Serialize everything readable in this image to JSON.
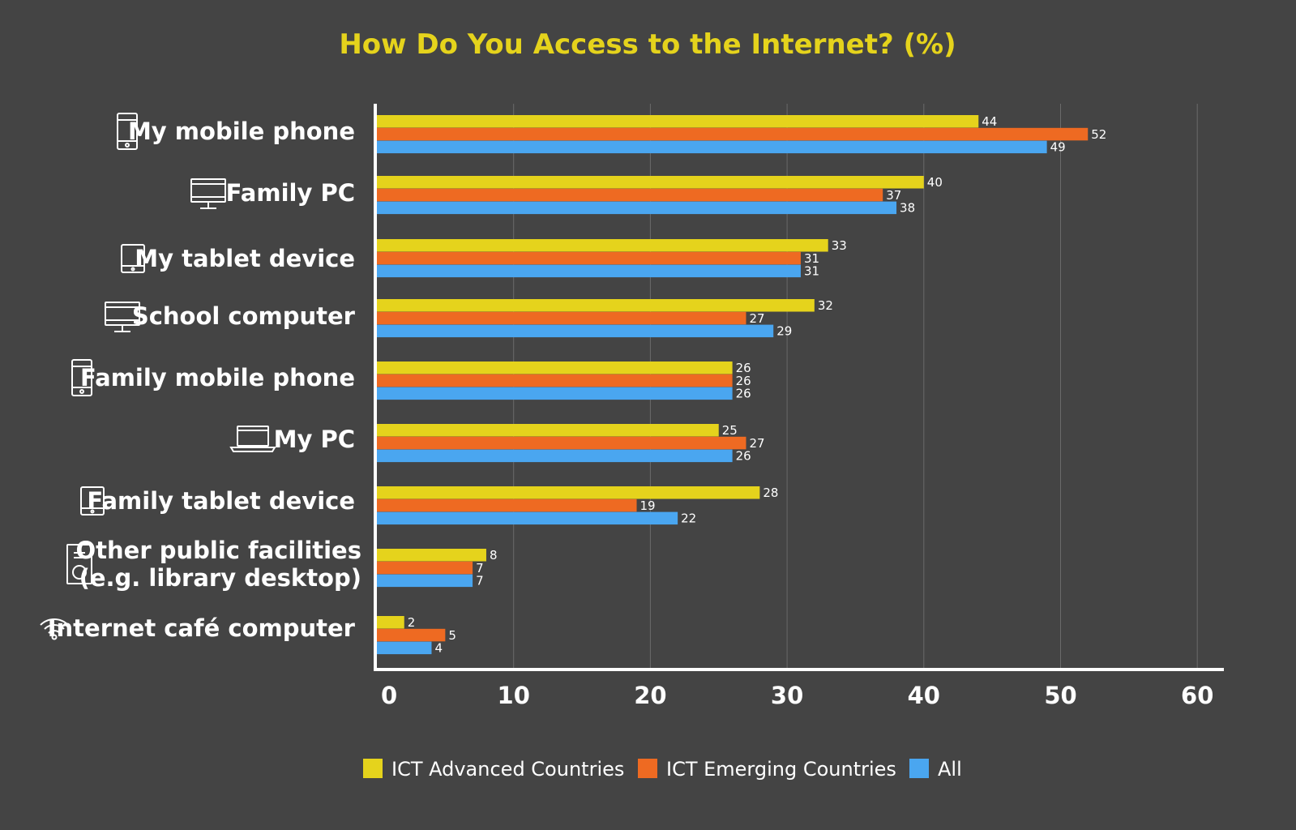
{
  "chart_data": {
    "type": "bar",
    "orientation": "horizontal",
    "title": "How Do You Access to the Internet? (%)",
    "categories": [
      {
        "label": "My mobile phone",
        "icon": "mobile-phone-icon"
      },
      {
        "label": "Family PC",
        "icon": "desktop-monitor-icon"
      },
      {
        "label": "My tablet device",
        "icon": "tablet-icon"
      },
      {
        "label": "School computer",
        "icon": "desktop-monitor-icon"
      },
      {
        "label": "Family mobile phone",
        "icon": "mobile-phone-icon"
      },
      {
        "label": "My PC",
        "icon": "laptop-icon"
      },
      {
        "label": "Family tablet device",
        "icon": "tablet-icon"
      },
      {
        "label": "Other public facilities\n(e.g. library desktop)",
        "icon": "desktop-tower-icon"
      },
      {
        "label": "Internet café computer",
        "icon": "wifi-icon"
      }
    ],
    "series": [
      {
        "name": "ICT Advanced Countries",
        "color": "#e5d31c",
        "values": [
          44,
          40,
          33,
          32,
          26,
          25,
          28,
          8,
          2
        ]
      },
      {
        "name": "ICT Emerging Countries",
        "color": "#ee6a22",
        "values": [
          52,
          37,
          31,
          27,
          26,
          27,
          19,
          7,
          5
        ]
      },
      {
        "name": "All",
        "color": "#4aa6f0",
        "values": [
          49,
          38,
          31,
          29,
          26,
          26,
          22,
          7,
          4
        ]
      }
    ],
    "xlim": [
      0,
      60
    ],
    "xticks": [
      0,
      10,
      20,
      30,
      40,
      50,
      60
    ],
    "grid": true,
    "legend_position": "bottom",
    "colors": {
      "title": "#e5d31c",
      "background": "#444444",
      "axis": "#ffffff",
      "grid": "#6a6a6a"
    }
  }
}
